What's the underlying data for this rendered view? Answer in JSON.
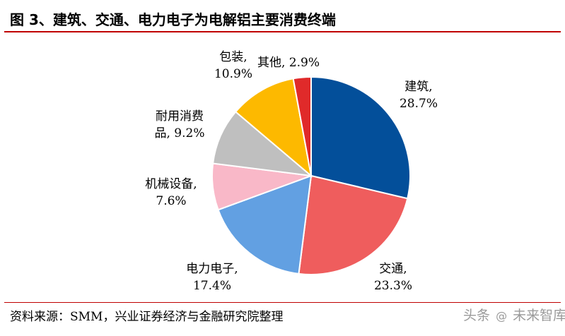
{
  "header": {
    "title": "图 3、建筑、交通、电力电子为电解铝主要消费终端"
  },
  "footer": {
    "source": "资料来源：SMM，兴业证券经济与金融研究院整理",
    "watermark_prefix": "头条",
    "watermark_name": "未来智库"
  },
  "chart_data": {
    "type": "pie",
    "title": "图 3、建筑、交通、电力电子为电解铝主要消费终端",
    "unit": "%",
    "start_angle": "12 o'clock",
    "direction": "clockwise",
    "slices": [
      {
        "name": "建筑",
        "value": 28.7,
        "label_line1": "建筑,",
        "label_line2": "28.7%",
        "color": "#034f9a"
      },
      {
        "name": "交通",
        "value": 23.3,
        "label_line1": "交通,",
        "label_line2": "23.3%",
        "color": "#ef5d5d"
      },
      {
        "name": "电力电子",
        "value": 17.4,
        "label_line1": "电力电子,",
        "label_line2": "17.4%",
        "color": "#62a0e2"
      },
      {
        "name": "机械设备",
        "value": 7.6,
        "label_line1": "机械设备,",
        "label_line2": "7.6%",
        "color": "#f9b8c8"
      },
      {
        "name": "耐用消费品",
        "value": 9.2,
        "label_line1": "耐用消费",
        "label_line2": "品, 9.2%",
        "color": "#bfbfbf"
      },
      {
        "name": "包装",
        "value": 10.9,
        "label_line1": "包装,",
        "label_line2": "10.9%",
        "color": "#fdb900"
      },
      {
        "name": "其他",
        "value": 2.9,
        "label_line1": "其他, 2.9%",
        "label_line2": "",
        "color": "#e02a2a"
      }
    ]
  }
}
